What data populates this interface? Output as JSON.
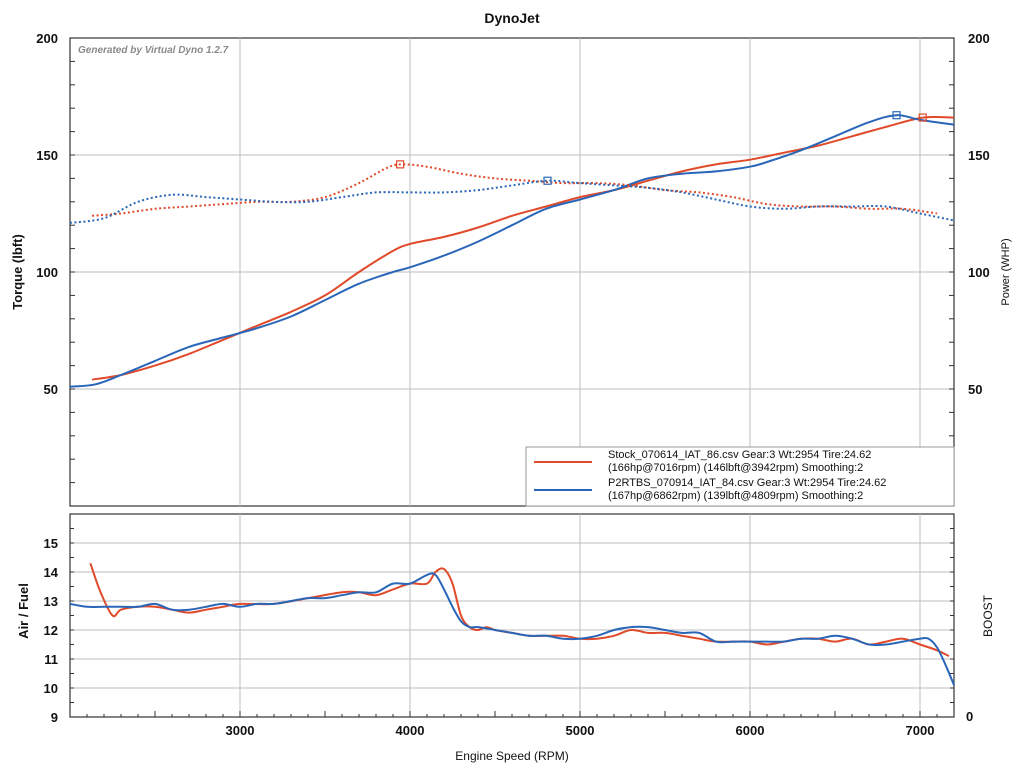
{
  "chart_data": [
    {
      "type": "line",
      "title": "DynoJet",
      "watermark": "Generated by Virtual Dyno 1.2.7",
      "ylabel_left": "Torque (lbft)",
      "ylabel_right": "Power (WHP)",
      "xlim": [
        2000,
        7200
      ],
      "ylim": [
        0,
        200
      ],
      "y_ticks": [
        50,
        100,
        150,
        200
      ],
      "x_grid": [
        3000,
        4000,
        5000,
        6000,
        7000
      ],
      "grid": true,
      "legend_position": "bottom-right",
      "legend": [
        {
          "line1": "Stock_070614_IAT_86.csv Gear:3 Wt:2954 Tire:24.62",
          "line2": "(166hp@7016rpm) (146lbft@3942rpm) Smoothing:2",
          "color": "#e04a2a"
        },
        {
          "line1": "P2RTBS_070914_IAT_84.csv Gear:3 Wt:2954 Tire:24.62",
          "line2": "(167hp@6862rpm) (139lbft@4809rpm) Smoothing:2",
          "color": "#2a66b8"
        }
      ],
      "series": [
        {
          "name": "Stock_070614_IAT_86.csv",
          "metric": "power",
          "style": "solid",
          "color": "#e04a2a",
          "x": [
            2130,
            2300,
            2500,
            2700,
            2900,
            3100,
            3300,
            3500,
            3700,
            3900,
            4000,
            4200,
            4400,
            4600,
            4800,
            5000,
            5200,
            5400,
            5600,
            5800,
            6000,
            6200,
            6400,
            6600,
            6800,
            7016,
            7200
          ],
          "y": [
            54,
            56,
            60,
            65,
            71,
            77,
            83,
            90,
            100,
            109,
            112,
            115,
            119,
            124,
            128,
            132,
            135,
            139,
            143,
            146,
            148,
            151,
            154,
            158,
            162,
            166,
            166
          ]
        },
        {
          "name": "P2RTBS_070914_IAT_84.csv",
          "metric": "power",
          "style": "solid",
          "color": "#2a66b8",
          "x": [
            2000,
            2150,
            2300,
            2500,
            2700,
            2900,
            3100,
            3300,
            3500,
            3700,
            3900,
            4000,
            4200,
            4400,
            4600,
            4800,
            5000,
            5200,
            5400,
            5600,
            5800,
            6000,
            6100,
            6300,
            6500,
            6700,
            6862,
            7000,
            7200
          ],
          "y": [
            51,
            52,
            56,
            62,
            68,
            72,
            76,
            81,
            88,
            95,
            100,
            102,
            107,
            113,
            120,
            127,
            131,
            135,
            140,
            142,
            143,
            145,
            147,
            152,
            158,
            164,
            167,
            165,
            163
          ]
        },
        {
          "name": "Stock_070614_IAT_86.csv",
          "metric": "torque",
          "style": "dotted",
          "color": "#e04a2a",
          "x": [
            2130,
            2300,
            2500,
            2700,
            2900,
            3100,
            3300,
            3500,
            3700,
            3850,
            3942,
            4100,
            4300,
            4500,
            4700,
            4900,
            5100,
            5300,
            5500,
            5700,
            5900,
            6100,
            6300,
            6500,
            6700,
            6900,
            7100
          ],
          "y": [
            124,
            125,
            127,
            128,
            129,
            130,
            130,
            132,
            138,
            144,
            146,
            145,
            142,
            140,
            139,
            138,
            138,
            137,
            135,
            134,
            132,
            129,
            128,
            128,
            127,
            127,
            125
          ]
        },
        {
          "name": "P2RTBS_070914_IAT_84.csv",
          "metric": "torque",
          "style": "dotted",
          "color": "#2a66b8",
          "x": [
            2000,
            2200,
            2400,
            2600,
            2800,
            3000,
            3200,
            3400,
            3600,
            3800,
            4000,
            4200,
            4400,
            4600,
            4809,
            5000,
            5200,
            5400,
            5600,
            5800,
            6000,
            6200,
            6400,
            6600,
            6800,
            7000,
            7200
          ],
          "y": [
            121,
            123,
            130,
            133,
            132,
            131,
            130,
            130,
            132,
            134,
            134,
            134,
            135,
            137,
            139,
            138,
            137,
            136,
            134,
            131,
            128,
            127,
            128,
            128,
            128,
            125,
            122
          ]
        }
      ],
      "peak_markers": [
        {
          "series": "Stock_070614_IAT_86.csv",
          "x": 3942,
          "y": 146,
          "color": "#e04a2a"
        },
        {
          "series": "Stock_070614_IAT_86.csv",
          "x": 7016,
          "y": 166,
          "color": "#e04a2a"
        },
        {
          "series": "P2RTBS_070914_IAT_84.csv",
          "x": 4809,
          "y": 139,
          "color": "#2a66b8"
        },
        {
          "series": "P2RTBS_070914_IAT_84.csv",
          "x": 6862,
          "y": 167,
          "color": "#2a66b8"
        }
      ]
    },
    {
      "type": "line",
      "xlabel": "Engine Speed (RPM)",
      "ylabel_left": "Air / Fuel",
      "ylabel_right": "BOOST",
      "xlim": [
        2000,
        7200
      ],
      "ylim": [
        9,
        16
      ],
      "y_ticks": [
        9,
        10,
        11,
        12,
        13,
        14,
        15
      ],
      "x_ticks": [
        3000,
        4000,
        5000,
        6000,
        7000
      ],
      "right_ticks": [
        "0"
      ],
      "grid": true,
      "series": [
        {
          "name": "Stock_070614_IAT_86.csv",
          "color": "#e04a2a",
          "x": [
            2120,
            2180,
            2250,
            2300,
            2400,
            2500,
            2600,
            2700,
            2800,
            2900,
            3000,
            3200,
            3400,
            3600,
            3700,
            3800,
            3900,
            4000,
            4100,
            4150,
            4200,
            4250,
            4300,
            4350,
            4400,
            4450,
            4500,
            4600,
            4700,
            4800,
            4900,
            5000,
            5100,
            5200,
            5300,
            5400,
            5500,
            5600,
            5700,
            5800,
            5900,
            6000,
            6100,
            6200,
            6300,
            6400,
            6500,
            6600,
            6700,
            6800,
            6900,
            7000,
            7100,
            7170
          ],
          "y": [
            14.3,
            13.3,
            12.5,
            12.7,
            12.8,
            12.8,
            12.7,
            12.6,
            12.7,
            12.8,
            12.9,
            12.9,
            13.1,
            13.3,
            13.3,
            13.2,
            13.4,
            13.6,
            13.6,
            14.0,
            14.1,
            13.6,
            12.5,
            12.1,
            12.0,
            12.1,
            12.0,
            11.9,
            11.8,
            11.8,
            11.8,
            11.7,
            11.7,
            11.8,
            12.0,
            11.9,
            11.9,
            11.8,
            11.7,
            11.6,
            11.6,
            11.6,
            11.5,
            11.6,
            11.7,
            11.7,
            11.6,
            11.7,
            11.5,
            11.6,
            11.7,
            11.5,
            11.3,
            11.1
          ]
        },
        {
          "name": "P2RTBS_070914_IAT_84.csv",
          "color": "#2a66b8",
          "x": [
            2000,
            2100,
            2200,
            2300,
            2400,
            2500,
            2600,
            2700,
            2800,
            2900,
            3000,
            3100,
            3200,
            3300,
            3400,
            3500,
            3600,
            3700,
            3800,
            3900,
            4000,
            4100,
            4150,
            4200,
            4250,
            4300,
            4350,
            4400,
            4500,
            4600,
            4700,
            4800,
            4900,
            5000,
            5100,
            5200,
            5300,
            5400,
            5500,
            5600,
            5700,
            5800,
            5900,
            6000,
            6100,
            6200,
            6300,
            6400,
            6500,
            6600,
            6700,
            6800,
            6900,
            7000,
            7050,
            7100,
            7150,
            7200
          ],
          "y": [
            12.9,
            12.8,
            12.8,
            12.8,
            12.8,
            12.9,
            12.7,
            12.7,
            12.8,
            12.9,
            12.8,
            12.9,
            12.9,
            13.0,
            13.1,
            13.1,
            13.2,
            13.3,
            13.3,
            13.6,
            13.6,
            13.9,
            13.9,
            13.4,
            12.8,
            12.3,
            12.1,
            12.1,
            12.0,
            11.9,
            11.8,
            11.8,
            11.7,
            11.7,
            11.8,
            12.0,
            12.1,
            12.1,
            12.0,
            11.9,
            11.9,
            11.6,
            11.6,
            11.6,
            11.6,
            11.6,
            11.7,
            11.7,
            11.8,
            11.7,
            11.5,
            11.5,
            11.6,
            11.7,
            11.7,
            11.4,
            10.8,
            10.1
          ]
        }
      ]
    }
  ]
}
